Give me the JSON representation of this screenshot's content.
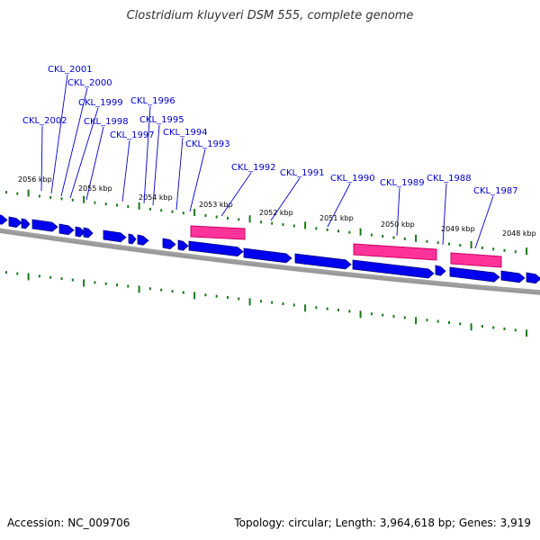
{
  "title": "Clostridium kluyveri DSM 555, complete genome",
  "footer": {
    "accession": "Accession: NC_009706",
    "topology": "Topology: circular; Length: 3,964,618 bp; Genes: 3,919"
  },
  "colors": {
    "gene_forward": "#0000ee",
    "gene_highlight": "#ff3399",
    "gene_label": "#0000cc",
    "tick": "#1a7a1a",
    "backbone": "#888888"
  },
  "kbp_ticks": [
    "2056 kbp",
    "2055 kbp",
    "2054 kbp",
    "2053 kbp",
    "2052 kbp",
    "2051 kbp",
    "2050 kbp",
    "2049 kbp",
    "2048 kbp"
  ],
  "gene_labels": [
    "CKL_2002",
    "CKL_2001",
    "CKL_2000",
    "CKL_1999",
    "CKL_1998",
    "CKL_1997",
    "CKL_1996",
    "CKL_1995",
    "CKL_1994",
    "CKL_1993",
    "CKL_1992",
    "CKL_1991",
    "CKL_1990",
    "CKL_1989",
    "CKL_1988",
    "CKL_1987"
  ]
}
